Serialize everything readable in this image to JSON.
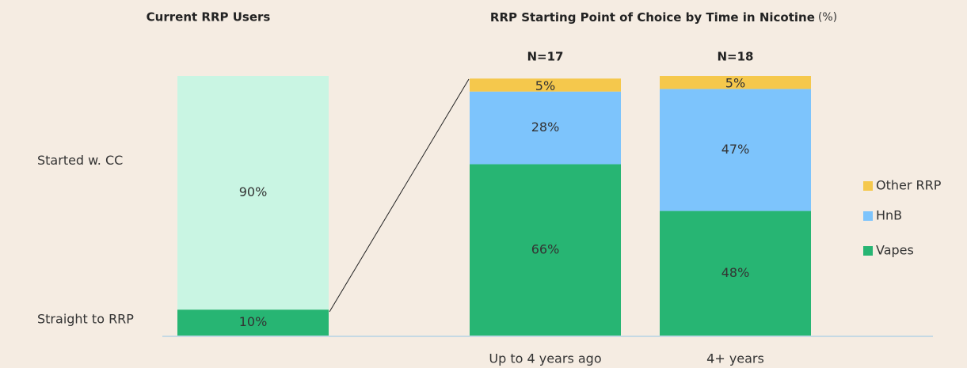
{
  "chart_data": [
    {
      "type": "bar",
      "stacked": true,
      "title": "Current RRP Users",
      "categories": [
        null
      ],
      "ylim": [
        0,
        100
      ],
      "series": [
        {
          "name": "Straight to RRP",
          "color": "#27b573",
          "values": [
            10
          ],
          "value_labels": [
            "10%"
          ]
        },
        {
          "name": "Started w. CC",
          "color": "#c9f5e3",
          "values": [
            90
          ],
          "value_labels": [
            "90%"
          ]
        }
      ]
    },
    {
      "type": "bar",
      "stacked": true,
      "title": "RRP Starting Point of Choice by Time in Nicotine",
      "unit": "(%)",
      "categories": [
        "Up to 4 years ago",
        "4+ years"
      ],
      "annotations": [
        "N=17",
        "N=18"
      ],
      "ylim": [
        0,
        100
      ],
      "legend": "right",
      "series": [
        {
          "name": "Vapes",
          "color": "#27b573",
          "values": [
            66,
            48
          ],
          "value_labels": [
            "66%",
            "48%"
          ]
        },
        {
          "name": "HnB",
          "color": "#7dc4fc",
          "values": [
            28,
            47
          ],
          "value_labels": [
            "28%",
            "47%"
          ]
        },
        {
          "name": "Other RRP",
          "color": "#f5c84c",
          "values": [
            5,
            5
          ],
          "value_labels": [
            "5%",
            "5%"
          ]
        }
      ]
    }
  ]
}
